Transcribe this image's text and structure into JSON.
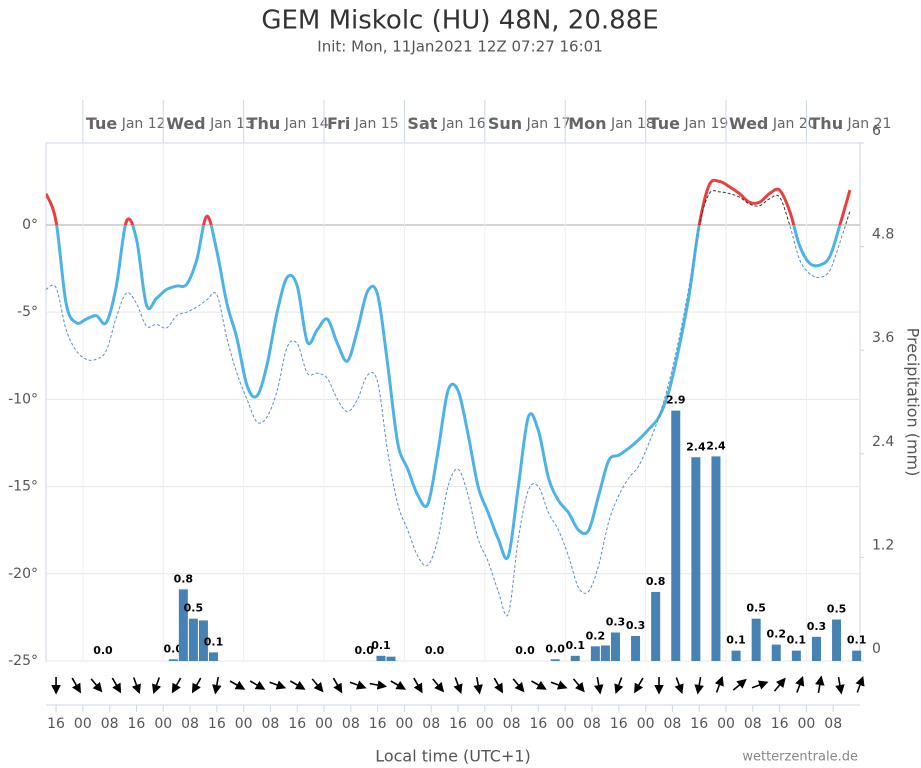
{
  "chart_data": {
    "type": "line",
    "title": "GEM Miskolc (HU) 48N, 20.88E",
    "subtitle": "Init: Mon, 11Jan2021 12Z 07:27 16:01",
    "x_axis_label": "Local time (UTC+1)",
    "y2_axis_label": "Precipitation (mm)",
    "credit": "wetterzentrale.de",
    "grid": true,
    "xlim": [
      13,
      256
    ],
    "ylim": [
      -25,
      4.7
    ],
    "y2lim": [
      0,
      6
    ],
    "yticks": [
      {
        "value": -25,
        "label": "-25°"
      },
      {
        "value": -20,
        "label": "-20°"
      },
      {
        "value": -15,
        "label": "-15°"
      },
      {
        "value": -10,
        "label": "-10°"
      },
      {
        "value": -5,
        "label": "-5°"
      },
      {
        "value": 0,
        "label": "0°"
      }
    ],
    "y2ticks": [
      0,
      1.2,
      2.4,
      3.6,
      4.8,
      6
    ],
    "xticks": [
      {
        "value": 16,
        "label": "16"
      },
      {
        "value": 24,
        "label": "00"
      },
      {
        "value": 32,
        "label": "08"
      },
      {
        "value": 40,
        "label": "16"
      },
      {
        "value": 48,
        "label": "00"
      },
      {
        "value": 56,
        "label": "08"
      },
      {
        "value": 64,
        "label": "16"
      },
      {
        "value": 72,
        "label": "00"
      },
      {
        "value": 80,
        "label": "08"
      },
      {
        "value": 88,
        "label": "16"
      },
      {
        "value": 96,
        "label": "00"
      },
      {
        "value": 104,
        "label": "08"
      },
      {
        "value": 112,
        "label": "16"
      },
      {
        "value": 120,
        "label": "00"
      },
      {
        "value": 128,
        "label": "08"
      },
      {
        "value": 136,
        "label": "16"
      },
      {
        "value": 144,
        "label": "00"
      },
      {
        "value": 152,
        "label": "08"
      },
      {
        "value": 160,
        "label": "16"
      },
      {
        "value": 168,
        "label": "00"
      },
      {
        "value": 176,
        "label": "08"
      },
      {
        "value": 184,
        "label": "16"
      },
      {
        "value": 192,
        "label": "00"
      },
      {
        "value": 200,
        "label": "08"
      },
      {
        "value": 208,
        "label": "16"
      },
      {
        "value": 216,
        "label": "00"
      },
      {
        "value": 224,
        "label": "08"
      },
      {
        "value": 232,
        "label": "16"
      },
      {
        "value": 240,
        "label": "00"
      },
      {
        "value": 248,
        "label": "08"
      }
    ],
    "xticks_top": [
      {
        "value": 24,
        "label": "Tue Jan 12"
      },
      {
        "value": 48,
        "label": "Wed Jan 13"
      },
      {
        "value": 72,
        "label": "Thu Jan 14"
      },
      {
        "value": 96,
        "label": "Fri Jan 15"
      },
      {
        "value": 120,
        "label": "Sat Jan 16"
      },
      {
        "value": 144,
        "label": "Sun Jan 17"
      },
      {
        "value": 168,
        "label": "Mon Jan 18"
      },
      {
        "value": 192,
        "label": "Tue Jan 19"
      },
      {
        "value": 216,
        "label": "Wed Jan 20"
      },
      {
        "value": 240,
        "label": "Thu Jan 21"
      }
    ],
    "series": [
      {
        "type": "line",
        "color": "#4db3e6",
        "color_above_zero": "#e8403c",
        "line_style": "solid",
        "x": [
          13,
          16,
          19,
          22,
          25,
          28,
          31,
          34,
          37,
          40,
          43,
          46,
          49,
          52,
          55,
          58,
          61,
          64,
          67,
          70,
          73,
          76,
          79,
          82,
          85,
          88,
          91,
          94,
          97,
          100,
          103,
          106,
          109,
          112,
          115,
          118,
          121,
          124,
          127,
          130,
          133,
          136,
          139,
          142,
          145,
          148,
          151,
          154,
          157,
          160,
          163,
          166,
          169,
          172,
          175,
          178,
          181,
          184,
          187,
          190,
          193,
          196,
          199,
          202,
          205,
          208,
          211,
          214,
          217,
          220,
          223,
          226,
          229,
          232,
          235,
          238,
          241,
          244,
          247,
          250,
          253
        ],
        "values": [
          1.8,
          0.2,
          -4.5,
          -5.6,
          -5.4,
          -5.2,
          -5.6,
          -3.5,
          0.2,
          -0.8,
          -4.6,
          -4.2,
          -3.7,
          -3.5,
          -3.4,
          -2,
          0.5,
          -1.5,
          -4.5,
          -6.5,
          -9.2,
          -9.8,
          -8,
          -5,
          -3,
          -3.5,
          -6.7,
          -6,
          -5.4,
          -6.8,
          -7.8,
          -6,
          -3.8,
          -4,
          -8,
          -12.5,
          -14,
          -15.5,
          -16,
          -13,
          -9.5,
          -9.5,
          -12,
          -15,
          -16.5,
          -18,
          -19,
          -15,
          -11,
          -11.8,
          -14.5,
          -15.8,
          -16.5,
          -17.5,
          -17.5,
          -15.5,
          -13.5,
          -13.2,
          -12.8,
          -12.3,
          -11.7,
          -11,
          -9.5,
          -7,
          -4,
          0,
          2.3,
          2.5,
          2.2,
          1.8,
          1.3,
          1.3,
          1.8,
          2,
          0.8,
          -1.2,
          -2.2,
          -2.3,
          -1.8,
          0,
          2
        ]
      },
      {
        "type": "line",
        "color": "#5b8fd1",
        "color_above_zero": "#333333",
        "line_style": "dashed",
        "x": [
          13,
          16,
          19,
          22,
          25,
          28,
          31,
          34,
          37,
          40,
          43,
          46,
          49,
          52,
          55,
          58,
          61,
          64,
          67,
          70,
          73,
          76,
          79,
          82,
          85,
          88,
          91,
          94,
          97,
          100,
          103,
          106,
          109,
          112,
          115,
          118,
          121,
          124,
          127,
          130,
          133,
          136,
          139,
          142,
          145,
          148,
          151,
          154,
          157,
          160,
          163,
          166,
          169,
          172,
          175,
          178,
          181,
          184,
          187,
          190,
          193,
          196,
          199,
          202,
          205,
          208,
          211,
          214,
          217,
          220,
          223,
          226,
          229,
          232,
          235,
          238,
          241,
          244,
          247,
          250,
          253
        ],
        "values": [
          -3.7,
          -3.6,
          -6,
          -7.2,
          -7.7,
          -7.7,
          -7.2,
          -5.3,
          -3.9,
          -4.5,
          -5.8,
          -5.7,
          -5.9,
          -5.2,
          -5,
          -4.7,
          -4.3,
          -4,
          -6.5,
          -8.5,
          -10,
          -11.3,
          -11,
          -9.5,
          -7,
          -6.8,
          -8.5,
          -8.5,
          -8.8,
          -10,
          -10.7,
          -10,
          -8.6,
          -9,
          -13,
          -16,
          -17.5,
          -19,
          -19.5,
          -18,
          -15,
          -14,
          -15.5,
          -18,
          -19.3,
          -21,
          -22.3,
          -18,
          -15.2,
          -15,
          -16.5,
          -17.5,
          -19,
          -20.8,
          -21,
          -19.5,
          -17,
          -15.5,
          -14.5,
          -13.8,
          -12.5,
          -11,
          -9,
          -6.5,
          -3.5,
          0,
          1.8,
          1.9,
          1.8,
          1.6,
          1.2,
          1.1,
          1.5,
          1.6,
          0,
          -2,
          -2.8,
          -3,
          -2.6,
          -1,
          0.8
        ]
      },
      {
        "type": "bar",
        "axis": "y2",
        "color": "#4682b4",
        "x": [
          30,
          51,
          54,
          57,
          60,
          63,
          108,
          113,
          116,
          129,
          156,
          165,
          171,
          177,
          180,
          183,
          189,
          195,
          201,
          207,
          213,
          219,
          225,
          231,
          237,
          243,
          249,
          255
        ],
        "values": [
          0,
          0.02,
          0.83,
          0.49,
          0.47,
          0.1,
          0,
          0.06,
          0.05,
          0,
          0,
          0.02,
          0.06,
          0.17,
          0.18,
          0.33,
          0.29,
          0.8,
          2.9,
          2.36,
          2.37,
          0.12,
          0.49,
          0.19,
          0.12,
          0.28,
          0.48,
          0.12
        ],
        "value_labels": [
          "0.0",
          "0.0",
          "0.8",
          "0.5",
          null,
          "0.1",
          "0.0",
          "0.1",
          null,
          "0.0",
          "0.0",
          "0.0",
          "0.1",
          "0.2",
          null,
          "0.3",
          "0.3",
          "0.8",
          "2.9",
          "2.4",
          "2.4",
          "0.1",
          "0.5",
          "0.2",
          "0.1",
          "0.3",
          "0.5",
          "0.1"
        ]
      }
    ],
    "wind": {
      "type": "arrow",
      "color": "#000000",
      "x": [
        16,
        22,
        28,
        34,
        40,
        46,
        52,
        58,
        64,
        70,
        76,
        82,
        88,
        94,
        100,
        106,
        112,
        118,
        124,
        130,
        136,
        142,
        148,
        154,
        160,
        166,
        172,
        178,
        184,
        190,
        196,
        202,
        208,
        214,
        220,
        226,
        232,
        238,
        244,
        250,
        256
      ],
      "direction": [
        0,
        330,
        320,
        330,
        340,
        20,
        30,
        30,
        10,
        300,
        300,
        290,
        300,
        320,
        330,
        290,
        280,
        300,
        330,
        320,
        340,
        350,
        330,
        320,
        300,
        290,
        320,
        350,
        20,
        30,
        0,
        340,
        10,
        200,
        230,
        250,
        220,
        200,
        190,
        350,
        200
      ]
    }
  }
}
